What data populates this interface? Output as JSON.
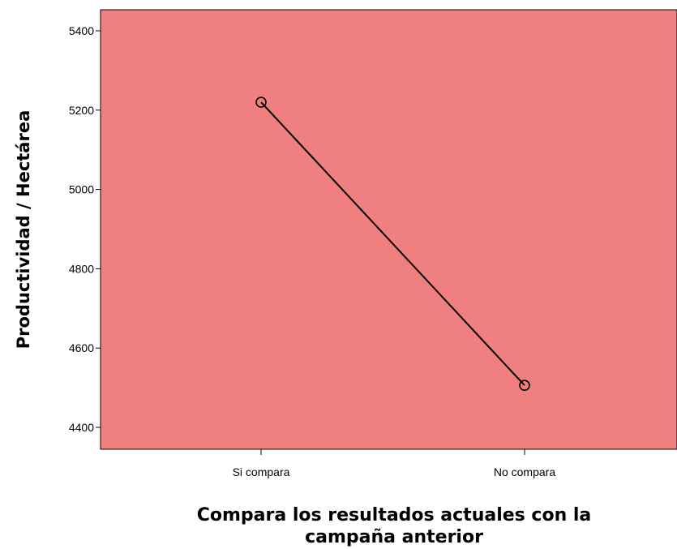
{
  "chart_data": {
    "type": "line",
    "categories": [
      "Si compara",
      "No compara"
    ],
    "series": [
      {
        "values": [
          5220,
          4506
        ]
      }
    ],
    "xlabel_lines": [
      "Compara los resultados actuales con la",
      "campaña anterior"
    ],
    "ylabel": "Productividad / Hectárea",
    "ylim": [
      4360,
      5460
    ],
    "yticks": [
      4400,
      4600,
      4800,
      5000,
      5200,
      5400
    ],
    "grid": false,
    "marker": "open-circle",
    "colors": {
      "plot_background": "#f08080",
      "line": "#000000",
      "axis": "#000000"
    }
  }
}
